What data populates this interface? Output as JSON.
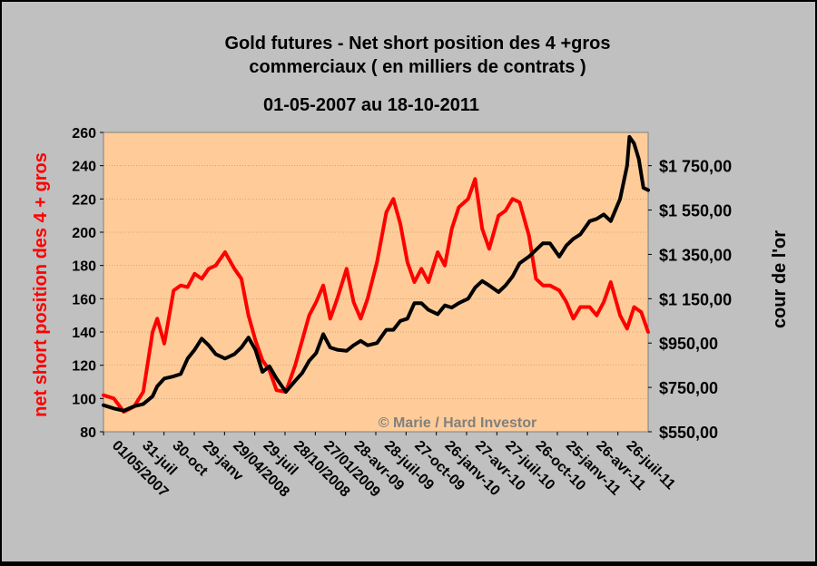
{
  "chart_data": {
    "type": "line",
    "title_line1": "Gold futures - Net short position des 4 +gros",
    "title_line2": "commerciaux ( en milliers de contrats )",
    "subtitle": "01-05-2007 au 18-10-2011",
    "ylabel_left": "net short position des 4 + gros",
    "ylabel_right": "cour de l'or",
    "watermark": "© Marie / Hard Investor",
    "x_start_date": "2007-05-01",
    "x_end_date": "2011-10-18",
    "x_tick_labels": [
      "01/05/2007",
      "31-juil",
      "30-oct",
      "29-janv",
      "29/04/2008",
      "29-juil",
      "28/10/2008",
      "27/01/2009",
      "28-avr-09",
      "28-juil-09",
      "27-oct-09",
      "26-janv-10",
      "27-avr-10",
      "27-juil-10",
      "26-oct-10",
      "25-janv-11",
      "26-avr-11",
      "26-juil-11"
    ],
    "y_left_range": [
      80,
      260
    ],
    "y_left_ticks": [
      "260",
      "240",
      "220",
      "200",
      "180",
      "160",
      "140",
      "120",
      "100",
      "80"
    ],
    "y_right_range": [
      550,
      1900
    ],
    "y_right_ticks": [
      "$1 750,00",
      "$1 550,00",
      "$1 350,00",
      "$1 150,00",
      "$950,00",
      "$750,00",
      "$550,00"
    ],
    "colors": {
      "net_short": "#ff0000",
      "gold": "#000000",
      "plot_bg": "#ffcc99",
      "left_label": "#ff0000",
      "watermark": "#808080"
    },
    "series": [
      {
        "axis": "left",
        "color": "#ff0000",
        "x": [
          "2007-05-01",
          "2007-06-01",
          "2007-07-01",
          "2007-07-31",
          "2007-08-28",
          "2007-09-25",
          "2007-10-09",
          "2007-10-30",
          "2007-11-27",
          "2007-12-18",
          "2008-01-08",
          "2008-01-29",
          "2008-02-19",
          "2008-03-11",
          "2008-04-01",
          "2008-04-29",
          "2008-05-27",
          "2008-06-17",
          "2008-07-08",
          "2008-07-29",
          "2008-08-19",
          "2008-09-09",
          "2008-09-30",
          "2008-10-28",
          "2008-11-25",
          "2008-12-16",
          "2009-01-06",
          "2009-01-27",
          "2009-02-17",
          "2009-03-10",
          "2009-03-31",
          "2009-04-28",
          "2009-05-19",
          "2009-06-09",
          "2009-06-30",
          "2009-07-28",
          "2009-08-25",
          "2009-09-15",
          "2009-10-06",
          "2009-10-27",
          "2009-11-17",
          "2009-12-08",
          "2009-12-29",
          "2010-01-26",
          "2010-02-16",
          "2010-03-09",
          "2010-03-30",
          "2010-04-27",
          "2010-05-18",
          "2010-06-08",
          "2010-06-29",
          "2010-07-27",
          "2010-08-17",
          "2010-09-07",
          "2010-09-28",
          "2010-10-26",
          "2010-11-16",
          "2010-12-07",
          "2010-12-28",
          "2011-01-25",
          "2011-02-15",
          "2011-03-08",
          "2011-03-29",
          "2011-04-26",
          "2011-05-17",
          "2011-06-07",
          "2011-06-28",
          "2011-07-26",
          "2011-08-16",
          "2011-09-06",
          "2011-09-27",
          "2011-10-18"
        ],
        "values": [
          102,
          100,
          92,
          95,
          104,
          140,
          148,
          133,
          165,
          168,
          167,
          175,
          172,
          178,
          180,
          188,
          178,
          172,
          150,
          135,
          123,
          117,
          105,
          104,
          120,
          135,
          150,
          158,
          168,
          148,
          160,
          178,
          158,
          148,
          160,
          182,
          212,
          220,
          205,
          182,
          170,
          178,
          170,
          188,
          180,
          202,
          215,
          220,
          232,
          202,
          190,
          210,
          213,
          220,
          218,
          198,
          172,
          168,
          168,
          165,
          158,
          148,
          155,
          155,
          150,
          158,
          170,
          150,
          142,
          155,
          152,
          140
        ]
      },
      {
        "axis": "right",
        "color": "#000000",
        "x": [
          "2007-05-01",
          "2007-06-01",
          "2007-07-01",
          "2007-07-31",
          "2007-08-28",
          "2007-09-25",
          "2007-10-09",
          "2007-10-30",
          "2007-11-27",
          "2007-12-18",
          "2008-01-08",
          "2008-01-29",
          "2008-02-19",
          "2008-03-11",
          "2008-04-01",
          "2008-04-29",
          "2008-05-27",
          "2008-06-17",
          "2008-07-08",
          "2008-07-29",
          "2008-08-19",
          "2008-09-09",
          "2008-09-30",
          "2008-10-28",
          "2008-11-25",
          "2008-12-16",
          "2009-01-06",
          "2009-01-27",
          "2009-02-17",
          "2009-03-10",
          "2009-03-31",
          "2009-04-28",
          "2009-05-19",
          "2009-06-09",
          "2009-06-30",
          "2009-07-28",
          "2009-08-25",
          "2009-09-15",
          "2009-10-06",
          "2009-10-27",
          "2009-11-17",
          "2009-12-08",
          "2009-12-29",
          "2010-01-26",
          "2010-02-16",
          "2010-03-09",
          "2010-03-30",
          "2010-04-27",
          "2010-05-18",
          "2010-06-08",
          "2010-06-29",
          "2010-07-27",
          "2010-08-17",
          "2010-09-07",
          "2010-09-28",
          "2010-10-26",
          "2010-11-16",
          "2010-12-07",
          "2010-12-28",
          "2011-01-25",
          "2011-02-15",
          "2011-03-08",
          "2011-03-29",
          "2011-04-26",
          "2011-05-17",
          "2011-06-07",
          "2011-06-28",
          "2011-07-26",
          "2011-08-16",
          "2011-08-23",
          "2011-09-06",
          "2011-09-20",
          "2011-10-04",
          "2011-10-18"
        ],
        "values": [
          670,
          655,
          645,
          665,
          675,
          710,
          755,
          790,
          800,
          810,
          880,
          920,
          970,
          940,
          900,
          880,
          900,
          930,
          975,
          920,
          820,
          845,
          790,
          730,
          780,
          815,
          870,
          905,
          990,
          930,
          920,
          915,
          940,
          960,
          940,
          950,
          1010,
          1010,
          1050,
          1060,
          1130,
          1130,
          1100,
          1080,
          1120,
          1110,
          1130,
          1150,
          1200,
          1230,
          1210,
          1180,
          1210,
          1250,
          1310,
          1340,
          1370,
          1400,
          1400,
          1340,
          1390,
          1420,
          1440,
          1500,
          1510,
          1530,
          1500,
          1600,
          1750,
          1880,
          1850,
          1780,
          1650,
          1640
        ]
      }
    ]
  }
}
